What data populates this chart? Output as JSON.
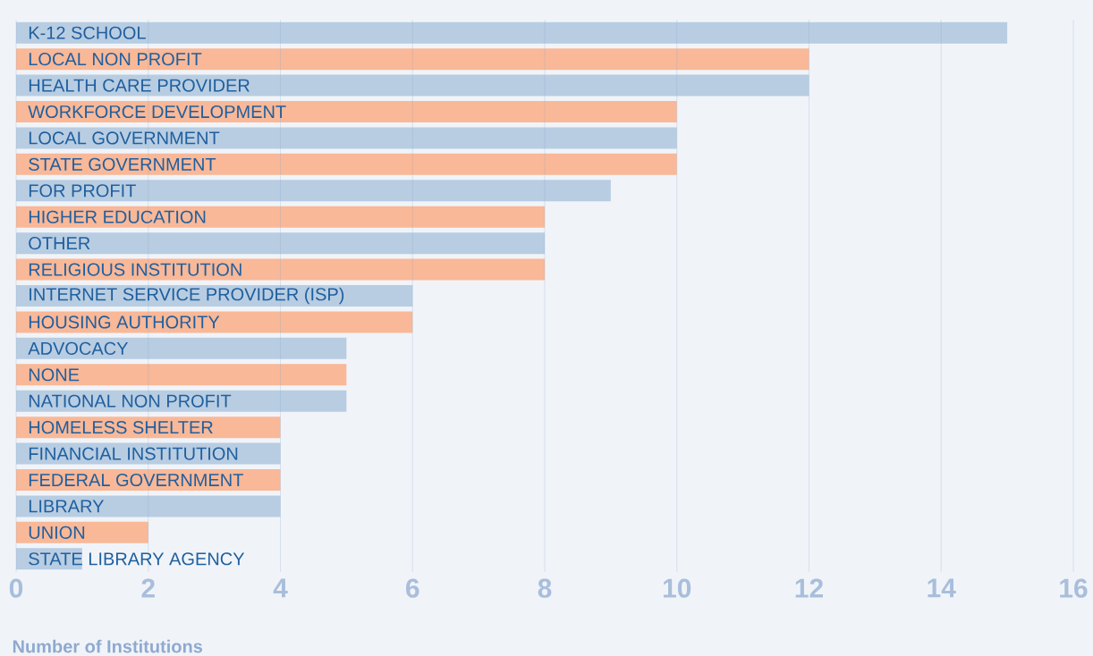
{
  "chart_data": {
    "type": "bar",
    "orientation": "horizontal",
    "xlabel": "Number of Institutions",
    "categories": [
      "K-12 SCHOOL",
      "LOCAL NON PROFIT",
      "HEALTH CARE PROVIDER",
      "WORKFORCE DEVELOPMENT",
      "LOCAL GOVERNMENT",
      "STATE GOVERNMENT",
      "FOR PROFIT",
      "HIGHER EDUCATION",
      "OTHER",
      "RELIGIOUS INSTITUTION",
      "INTERNET SERVICE PROVIDER (ISP)",
      "HOUSING AUTHORITY",
      "ADVOCACY",
      "NONE",
      "NATIONAL NON PROFIT",
      "HOMELESS SHELTER",
      "FINANCIAL INSTITUTION",
      "FEDERAL GOVERNMENT",
      "LIBRARY",
      "UNION",
      "STATE LIBRARY AGENCY"
    ],
    "values": [
      15,
      12,
      12,
      10,
      10,
      10,
      9,
      8,
      8,
      8,
      6,
      6,
      5,
      5,
      5,
      4,
      4,
      4,
      4,
      2,
      1
    ],
    "colors": [
      "#b8cde2",
      "#f9b897",
      "#b8cde2",
      "#f9b897",
      "#b8cde2",
      "#f9b897",
      "#b8cde2",
      "#f9b897",
      "#b8cde2",
      "#f9b897",
      "#b8cde2",
      "#f9b897",
      "#b8cde2",
      "#f9b897",
      "#b8cde2",
      "#f9b897",
      "#b8cde2",
      "#f9b897",
      "#b8cde2",
      "#f9b897",
      "#b8cde2"
    ],
    "xlim": [
      0,
      16
    ],
    "xticks": [
      0,
      2,
      4,
      6,
      8,
      10,
      12,
      14,
      16
    ],
    "grid": "x"
  }
}
